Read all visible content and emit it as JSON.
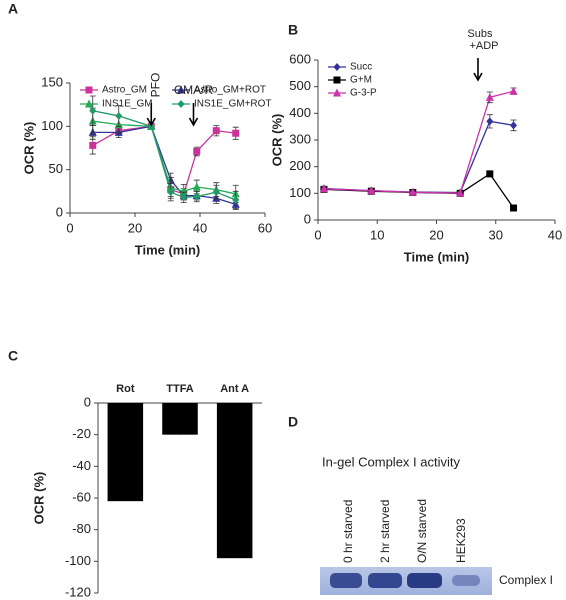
{
  "panels": [
    "A",
    "B",
    "C",
    "D"
  ],
  "chart_data": [
    {
      "type": "line",
      "x": [
        7,
        15,
        25,
        31,
        35,
        39,
        45,
        51
      ],
      "xlim": [
        0,
        60
      ],
      "xticks": [
        0,
        20,
        40,
        60
      ],
      "ylim": [
        0,
        150
      ],
      "yticks": [
        0,
        50,
        100,
        150
      ],
      "x_label": "Time (min)",
      "y_label": "OCR (%)",
      "annotations": [
        {
          "text": "PFO",
          "x": 25
        },
        {
          "text": "GMA/R",
          "x": 38
        }
      ],
      "series": [
        {
          "name": "Astro_GM",
          "color": "#cc3399",
          "marker": "square",
          "values": [
            78,
            95,
            100,
            27,
            22,
            71,
            95,
            92
          ],
          "errors": [
            10,
            5,
            0,
            8,
            6,
            5,
            6,
            7
          ]
        },
        {
          "name": "Astro_GM+ROT",
          "color": "#333399",
          "marker": "triangle",
          "values": [
            93,
            93,
            100,
            38,
            20,
            20,
            17,
            10
          ],
          "errors": [
            8,
            6,
            0,
            8,
            5,
            5,
            6,
            6
          ]
        },
        {
          "name": "INS1E_GM",
          "color": "#22aa55",
          "marker": "triangle",
          "values": [
            106,
            102,
            100,
            29,
            25,
            30,
            27,
            22
          ],
          "errors": [
            15,
            10,
            0,
            12,
            8,
            8,
            8,
            10
          ]
        },
        {
          "name": "INS1E_GM+ROT",
          "color": "#229966",
          "marker": "diamond",
          "values": [
            118,
            112,
            100,
            24,
            18,
            19,
            24,
            15
          ],
          "errors": [
            17,
            12,
            0,
            10,
            6,
            6,
            8,
            10
          ]
        }
      ]
    },
    {
      "type": "line",
      "x": [
        1,
        9,
        16,
        24,
        29,
        33
      ],
      "xlim": [
        0,
        40
      ],
      "xticks": [
        0,
        10,
        20,
        30,
        40
      ],
      "ylim": [
        0,
        600
      ],
      "yticks": [
        0,
        100,
        200,
        300,
        400,
        500,
        600
      ],
      "x_label": "Time (min)",
      "y_label": "OCR (%)",
      "annotations": [
        {
          "lines": [
            "Subs",
            "+ADP"
          ],
          "x": 27
        }
      ],
      "series": [
        {
          "name": "Succ",
          "color": "#333399",
          "marker": "diamond",
          "values": [
            118,
            110,
            105,
            103,
            370,
            355
          ],
          "errors": [
            8,
            6,
            6,
            5,
            25,
            20
          ]
        },
        {
          "name": "G+M",
          "color": "#000000",
          "marker": "square",
          "values": [
            115,
            108,
            103,
            100,
            173,
            45
          ],
          "errors": [
            5,
            5,
            5,
            5,
            8,
            5
          ]
        },
        {
          "name": "G-3-P",
          "color": "#cc33aa",
          "marker": "triangle",
          "values": [
            117,
            110,
            104,
            101,
            460,
            483
          ],
          "errors": [
            8,
            6,
            6,
            5,
            20,
            12
          ]
        }
      ]
    },
    {
      "type": "bar",
      "categories": [
        "Rot",
        "TTFA",
        "Ant A"
      ],
      "values": [
        -62,
        -20,
        -98
      ],
      "errors": [
        5,
        10,
        14
      ],
      "color": "#000000",
      "ylim": [
        -120,
        0
      ],
      "yticks": [
        0,
        -20,
        -40,
        -60,
        -80,
        -100,
        -120
      ],
      "y_label": "OCR (%)"
    }
  ],
  "gel": {
    "title": "In-gel Complex I activity",
    "lanes": [
      "0 hr starved",
      "2 hr starved",
      "O/N starved",
      "HEK293"
    ],
    "band_label": "Complex I"
  }
}
